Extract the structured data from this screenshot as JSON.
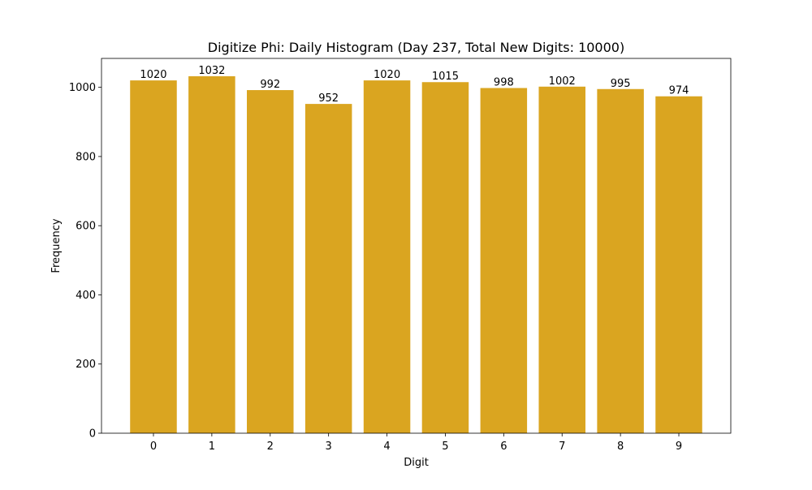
{
  "chart_data": {
    "type": "bar",
    "title": "Digitize Phi: Daily Histogram (Day 237, Total New Digits: 10000)",
    "xlabel": "Digit",
    "ylabel": "Frequency",
    "categories": [
      "0",
      "1",
      "2",
      "3",
      "4",
      "5",
      "6",
      "7",
      "8",
      "9"
    ],
    "values": [
      1020,
      1032,
      992,
      952,
      1020,
      1015,
      998,
      1002,
      995,
      974
    ],
    "data_labels": [
      "1020",
      "1032",
      "992",
      "952",
      "1020",
      "1015",
      "998",
      "1002",
      "995",
      "974"
    ],
    "ylim": [
      0,
      1083.6
    ],
    "yticks": [
      0,
      200,
      400,
      600,
      800,
      1000
    ],
    "ytick_labels": [
      "0",
      "200",
      "400",
      "600",
      "800",
      "1000"
    ],
    "grid": false,
    "bar_color": "#DAA520"
  }
}
